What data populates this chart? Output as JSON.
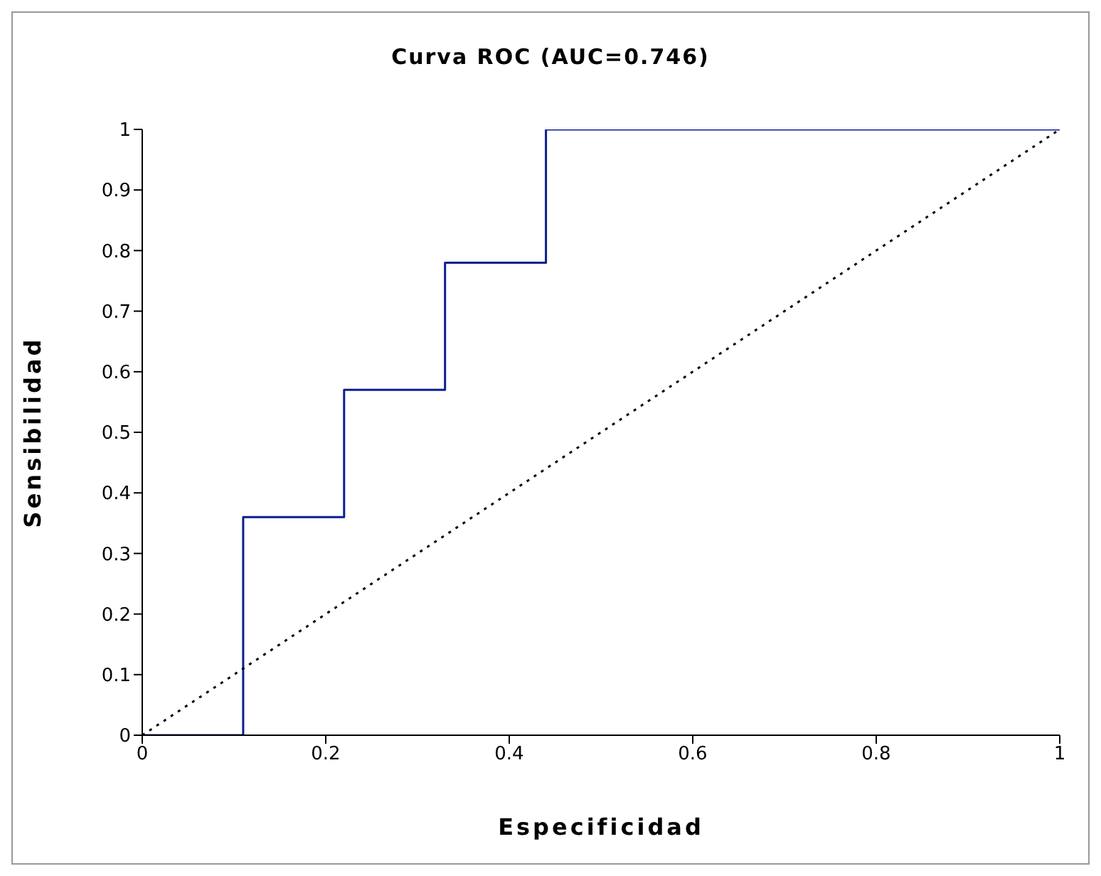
{
  "chart_data": {
    "type": "step",
    "title": "Curva ROC (AUC=0.746)",
    "xlabel": "Especificidad",
    "ylabel": "Sensibilidad",
    "xlim": [
      0,
      1
    ],
    "ylim": [
      0,
      1
    ],
    "xticks": [
      0,
      0.2,
      0.4,
      0.6,
      0.8,
      1
    ],
    "yticks": [
      0,
      0.1,
      0.2,
      0.3,
      0.4,
      0.5,
      0.6,
      0.7,
      0.8,
      0.9,
      1
    ],
    "grid": false,
    "legend": false,
    "marker": "none",
    "series": [
      {
        "color": "#0b1f8f",
        "line_style": "solid",
        "x": [
          0,
          0.11,
          0.22,
          0.33,
          0.44,
          1
        ],
        "values": [
          0,
          0.36,
          0.57,
          0.78,
          1,
          1
        ]
      },
      {
        "type": "line",
        "color": "#000000",
        "line_style": "dotted",
        "x": [
          0,
          1
        ],
        "values": [
          0,
          1
        ]
      }
    ]
  }
}
